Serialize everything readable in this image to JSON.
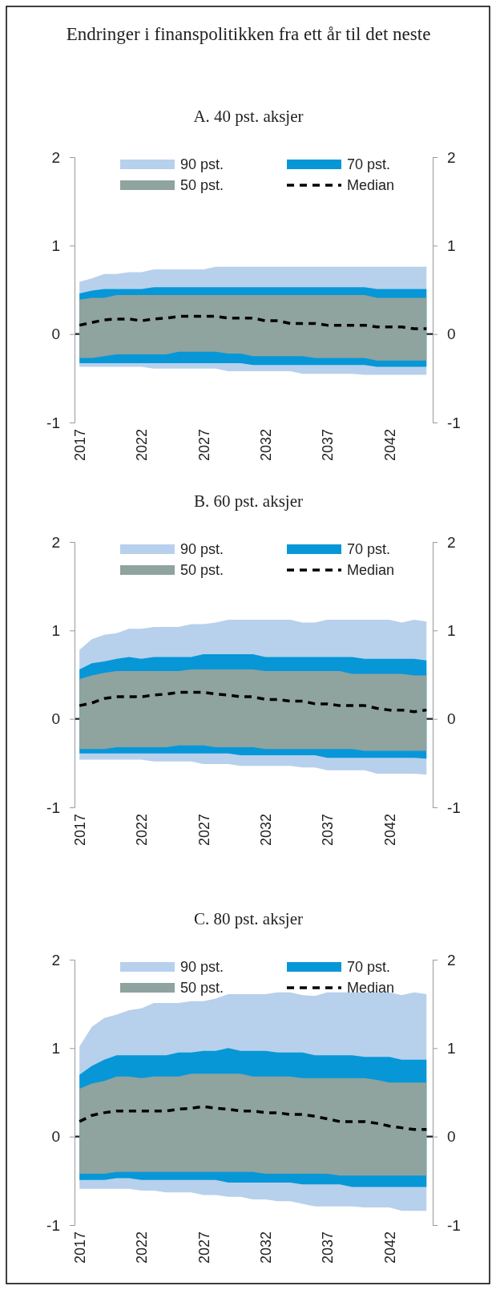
{
  "chart_data": [
    {
      "type": "line",
      "title": "Endringer i finanspolitikken fra ett år til det neste",
      "subtitle": "A. 40 pst. aksjer",
      "x": [
        2017,
        2018,
        2019,
        2020,
        2021,
        2022,
        2023,
        2024,
        2025,
        2026,
        2027,
        2028,
        2029,
        2030,
        2031,
        2032,
        2033,
        2034,
        2035,
        2036,
        2037,
        2038,
        2039,
        2040,
        2041,
        2042,
        2043,
        2044,
        2045
      ],
      "xlim": [
        2016.6,
        2045.5
      ],
      "xticks": [
        2017,
        2022,
        2027,
        2032,
        2037,
        2042
      ],
      "ylim": [
        -1,
        2
      ],
      "yticks": [
        -1,
        0,
        1,
        2
      ],
      "y2lim": [
        -1,
        2
      ],
      "y2ticks": [
        -1,
        0,
        1,
        2
      ],
      "legend": "top",
      "series": [
        {
          "name": "90 pst.",
          "color": "#b7d0ec",
          "values": [
            null,
            null,
            null,
            null,
            null,
            null,
            null,
            null,
            null,
            null,
            null,
            null,
            null,
            null,
            null,
            null,
            null,
            null,
            null,
            null,
            null,
            null,
            null,
            null,
            null,
            null,
            null,
            null,
            null
          ],
          "lower": [
            -0.37,
            -0.37,
            -0.37,
            -0.37,
            -0.37,
            -0.37,
            -0.39,
            -0.39,
            -0.39,
            -0.39,
            -0.39,
            -0.39,
            -0.42,
            -0.42,
            -0.42,
            -0.42,
            -0.42,
            -0.42,
            -0.45,
            -0.45,
            -0.45,
            -0.45,
            -0.45,
            -0.46,
            -0.46,
            -0.46,
            -0.46,
            -0.46,
            -0.46
          ],
          "upper": [
            0.59,
            0.63,
            0.68,
            0.68,
            0.7,
            0.7,
            0.73,
            0.73,
            0.73,
            0.73,
            0.73,
            0.76,
            0.76,
            0.76,
            0.76,
            0.76,
            0.76,
            0.76,
            0.76,
            0.76,
            0.76,
            0.76,
            0.76,
            0.76,
            0.76,
            0.76,
            0.76,
            0.76,
            0.76
          ]
        },
        {
          "name": "70 pst.",
          "color": "#0797d7",
          "values": [
            null,
            null,
            null,
            null,
            null,
            null,
            null,
            null,
            null,
            null,
            null,
            null,
            null,
            null,
            null,
            null,
            null,
            null,
            null,
            null,
            null,
            null,
            null,
            null,
            null,
            null,
            null,
            null,
            null
          ],
          "lower": [
            -0.33,
            -0.33,
            -0.33,
            -0.33,
            -0.33,
            -0.33,
            -0.33,
            -0.33,
            -0.33,
            -0.33,
            -0.33,
            -0.33,
            -0.33,
            -0.33,
            -0.35,
            -0.35,
            -0.35,
            -0.35,
            -0.35,
            -0.35,
            -0.35,
            -0.35,
            -0.35,
            -0.35,
            -0.37,
            -0.37,
            -0.37,
            -0.37,
            -0.37
          ],
          "upper": [
            0.46,
            0.49,
            0.51,
            0.51,
            0.51,
            0.51,
            0.53,
            0.53,
            0.53,
            0.53,
            0.53,
            0.53,
            0.53,
            0.53,
            0.53,
            0.53,
            0.53,
            0.53,
            0.53,
            0.53,
            0.53,
            0.53,
            0.53,
            0.53,
            0.51,
            0.51,
            0.51,
            0.51,
            0.51
          ]
        },
        {
          "name": "50 pst.",
          "color": "#8fa39f",
          "values": [
            null,
            null,
            null,
            null,
            null,
            null,
            null,
            null,
            null,
            null,
            null,
            null,
            null,
            null,
            null,
            null,
            null,
            null,
            null,
            null,
            null,
            null,
            null,
            null,
            null,
            null,
            null,
            null,
            null
          ],
          "lower": [
            -0.27,
            -0.27,
            -0.25,
            -0.23,
            -0.23,
            -0.23,
            -0.23,
            -0.23,
            -0.2,
            -0.2,
            -0.2,
            -0.2,
            -0.22,
            -0.22,
            -0.25,
            -0.25,
            -0.25,
            -0.25,
            -0.25,
            -0.27,
            -0.27,
            -0.27,
            -0.27,
            -0.27,
            -0.3,
            -0.3,
            -0.3,
            -0.3,
            -0.3
          ],
          "upper": [
            0.39,
            0.41,
            0.41,
            0.44,
            0.44,
            0.44,
            0.44,
            0.44,
            0.44,
            0.44,
            0.44,
            0.44,
            0.44,
            0.44,
            0.44,
            0.44,
            0.44,
            0.44,
            0.44,
            0.44,
            0.44,
            0.44,
            0.44,
            0.44,
            0.41,
            0.41,
            0.41,
            0.41,
            0.41
          ]
        },
        {
          "name": "Median",
          "color": "#000000",
          "line_style": "dashed",
          "values": [
            0.1,
            0.13,
            0.16,
            0.17,
            0.17,
            0.15,
            0.17,
            0.18,
            0.2,
            0.2,
            0.2,
            0.2,
            0.18,
            0.18,
            0.18,
            0.15,
            0.15,
            0.12,
            0.12,
            0.12,
            0.1,
            0.1,
            0.1,
            0.1,
            0.08,
            0.08,
            0.08,
            0.06,
            0.06
          ]
        }
      ]
    },
    {
      "type": "line",
      "subtitle": "B. 60 pst. aksjer",
      "x": [
        2017,
        2018,
        2019,
        2020,
        2021,
        2022,
        2023,
        2024,
        2025,
        2026,
        2027,
        2028,
        2029,
        2030,
        2031,
        2032,
        2033,
        2034,
        2035,
        2036,
        2037,
        2038,
        2039,
        2040,
        2041,
        2042,
        2043,
        2044,
        2045
      ],
      "xlim": [
        2016.6,
        2045.5
      ],
      "xticks": [
        2017,
        2022,
        2027,
        2032,
        2037,
        2042
      ],
      "ylim": [
        -1,
        2
      ],
      "yticks": [
        -1,
        0,
        1,
        2
      ],
      "y2lim": [
        -1,
        2
      ],
      "y2ticks": [
        -1,
        0,
        1,
        2
      ],
      "legend": "top",
      "series": [
        {
          "name": "90 pst.",
          "color": "#b7d0ec",
          "values": [
            null,
            null,
            null,
            null,
            null,
            null,
            null,
            null,
            null,
            null,
            null,
            null,
            null,
            null,
            null,
            null,
            null,
            null,
            null,
            null,
            null,
            null,
            null,
            null,
            null,
            null,
            null,
            null,
            null
          ],
          "lower": [
            -0.46,
            -0.46,
            -0.46,
            -0.46,
            -0.46,
            -0.46,
            -0.48,
            -0.48,
            -0.48,
            -0.48,
            -0.51,
            -0.51,
            -0.51,
            -0.53,
            -0.53,
            -0.53,
            -0.53,
            -0.53,
            -0.55,
            -0.55,
            -0.58,
            -0.58,
            -0.58,
            -0.58,
            -0.62,
            -0.62,
            -0.62,
            -0.62,
            -0.63
          ],
          "upper": [
            0.78,
            0.9,
            0.95,
            0.97,
            1.02,
            1.02,
            1.04,
            1.04,
            1.04,
            1.07,
            1.07,
            1.09,
            1.12,
            1.12,
            1.12,
            1.12,
            1.12,
            1.12,
            1.09,
            1.09,
            1.12,
            1.12,
            1.12,
            1.12,
            1.12,
            1.12,
            1.09,
            1.12,
            1.1
          ]
        },
        {
          "name": "70 pst.",
          "color": "#0797d7",
          "values": [
            null,
            null,
            null,
            null,
            null,
            null,
            null,
            null,
            null,
            null,
            null,
            null,
            null,
            null,
            null,
            null,
            null,
            null,
            null,
            null,
            null,
            null,
            null,
            null,
            null,
            null,
            null,
            null,
            null
          ],
          "lower": [
            -0.39,
            -0.39,
            -0.39,
            -0.39,
            -0.39,
            -0.39,
            -0.39,
            -0.39,
            -0.39,
            -0.39,
            -0.39,
            -0.39,
            -0.39,
            -0.41,
            -0.41,
            -0.41,
            -0.41,
            -0.41,
            -0.41,
            -0.41,
            -0.44,
            -0.44,
            -0.44,
            -0.44,
            -0.44,
            -0.44,
            -0.44,
            -0.44,
            -0.45
          ],
          "upper": [
            0.56,
            0.63,
            0.65,
            0.68,
            0.7,
            0.68,
            0.7,
            0.7,
            0.7,
            0.7,
            0.73,
            0.73,
            0.73,
            0.73,
            0.73,
            0.7,
            0.7,
            0.7,
            0.7,
            0.7,
            0.7,
            0.7,
            0.7,
            0.68,
            0.68,
            0.68,
            0.68,
            0.68,
            0.66
          ]
        },
        {
          "name": "50 pst.",
          "color": "#8fa39f",
          "values": [
            null,
            null,
            null,
            null,
            null,
            null,
            null,
            null,
            null,
            null,
            null,
            null,
            null,
            null,
            null,
            null,
            null,
            null,
            null,
            null,
            null,
            null,
            null,
            null,
            null,
            null,
            null,
            null,
            null
          ],
          "lower": [
            -0.34,
            -0.34,
            -0.34,
            -0.32,
            -0.32,
            -0.32,
            -0.32,
            -0.32,
            -0.3,
            -0.3,
            -0.3,
            -0.32,
            -0.32,
            -0.32,
            -0.32,
            -0.34,
            -0.34,
            -0.34,
            -0.34,
            -0.34,
            -0.34,
            -0.34,
            -0.34,
            -0.36,
            -0.36,
            -0.36,
            -0.36,
            -0.36,
            -0.36
          ],
          "upper": [
            0.45,
            0.49,
            0.52,
            0.54,
            0.54,
            0.54,
            0.54,
            0.54,
            0.54,
            0.56,
            0.56,
            0.56,
            0.56,
            0.56,
            0.56,
            0.54,
            0.54,
            0.54,
            0.54,
            0.54,
            0.54,
            0.54,
            0.51,
            0.51,
            0.51,
            0.51,
            0.51,
            0.49,
            0.49
          ]
        },
        {
          "name": "Median",
          "color": "#000000",
          "line_style": "dashed",
          "values": [
            0.15,
            0.18,
            0.23,
            0.25,
            0.25,
            0.25,
            0.27,
            0.28,
            0.3,
            0.3,
            0.3,
            0.28,
            0.27,
            0.25,
            0.25,
            0.22,
            0.22,
            0.2,
            0.2,
            0.17,
            0.17,
            0.15,
            0.15,
            0.15,
            0.12,
            0.1,
            0.1,
            0.08,
            0.1
          ]
        }
      ]
    },
    {
      "type": "line",
      "subtitle": "C. 80 pst. aksjer",
      "x": [
        2017,
        2018,
        2019,
        2020,
        2021,
        2022,
        2023,
        2024,
        2025,
        2026,
        2027,
        2028,
        2029,
        2030,
        2031,
        2032,
        2033,
        2034,
        2035,
        2036,
        2037,
        2038,
        2039,
        2040,
        2041,
        2042,
        2043,
        2044,
        2045
      ],
      "xlim": [
        2016.6,
        2045.5
      ],
      "xticks": [
        2017,
        2022,
        2027,
        2032,
        2037,
        2042
      ],
      "ylim": [
        -1,
        2
      ],
      "yticks": [
        -1,
        0,
        1,
        2
      ],
      "y2lim": [
        -1,
        2
      ],
      "y2ticks": [
        -1,
        0,
        1,
        2
      ],
      "legend": "top",
      "series": [
        {
          "name": "90 pst.",
          "color": "#b7d0ec",
          "values": [
            null,
            null,
            null,
            null,
            null,
            null,
            null,
            null,
            null,
            null,
            null,
            null,
            null,
            null,
            null,
            null,
            null,
            null,
            null,
            null,
            null,
            null,
            null,
            null,
            null,
            null,
            null,
            null,
            null
          ],
          "lower": [
            -0.59,
            -0.59,
            -0.59,
            -0.59,
            -0.59,
            -0.61,
            -0.61,
            -0.63,
            -0.63,
            -0.63,
            -0.66,
            -0.66,
            -0.68,
            -0.68,
            -0.71,
            -0.71,
            -0.73,
            -0.73,
            -0.76,
            -0.79,
            -0.79,
            -0.79,
            -0.79,
            -0.8,
            -0.8,
            -0.8,
            -0.84,
            -0.84,
            -0.84
          ],
          "upper": [
            1.02,
            1.24,
            1.34,
            1.38,
            1.43,
            1.45,
            1.51,
            1.51,
            1.51,
            1.53,
            1.53,
            1.56,
            1.61,
            1.61,
            1.61,
            1.61,
            1.63,
            1.63,
            1.6,
            1.59,
            1.63,
            1.63,
            1.63,
            1.63,
            1.63,
            1.63,
            1.6,
            1.63,
            1.61
          ]
        },
        {
          "name": "70 pst.",
          "color": "#0797d7",
          "values": [
            null,
            null,
            null,
            null,
            null,
            null,
            null,
            null,
            null,
            null,
            null,
            null,
            null,
            null,
            null,
            null,
            null,
            null,
            null,
            null,
            null,
            null,
            null,
            null,
            null,
            null,
            null,
            null,
            null
          ],
          "lower": [
            -0.49,
            -0.49,
            -0.49,
            -0.47,
            -0.47,
            -0.49,
            -0.49,
            -0.49,
            -0.49,
            -0.49,
            -0.49,
            -0.49,
            -0.52,
            -0.52,
            -0.52,
            -0.52,
            -0.52,
            -0.52,
            -0.54,
            -0.54,
            -0.54,
            -0.54,
            -0.57,
            -0.57,
            -0.57,
            -0.57,
            -0.57,
            -0.57,
            -0.57
          ],
          "upper": [
            0.7,
            0.8,
            0.87,
            0.92,
            0.92,
            0.92,
            0.92,
            0.92,
            0.95,
            0.95,
            0.97,
            0.97,
            1.0,
            0.97,
            0.97,
            0.97,
            0.95,
            0.95,
            0.95,
            0.92,
            0.92,
            0.92,
            0.92,
            0.9,
            0.9,
            0.9,
            0.87,
            0.87,
            0.87
          ]
        },
        {
          "name": "50 pst.",
          "color": "#8fa39f",
          "values": [
            null,
            null,
            null,
            null,
            null,
            null,
            null,
            null,
            null,
            null,
            null,
            null,
            null,
            null,
            null,
            null,
            null,
            null,
            null,
            null,
            null,
            null,
            null,
            null,
            null,
            null,
            null,
            null,
            null
          ],
          "lower": [
            -0.42,
            -0.42,
            -0.42,
            -0.4,
            -0.4,
            -0.4,
            -0.4,
            -0.4,
            -0.4,
            -0.4,
            -0.4,
            -0.4,
            -0.4,
            -0.4,
            -0.4,
            -0.42,
            -0.42,
            -0.42,
            -0.42,
            -0.42,
            -0.42,
            -0.44,
            -0.44,
            -0.44,
            -0.44,
            -0.44,
            -0.44,
            -0.44,
            -0.44
          ],
          "upper": [
            0.54,
            0.6,
            0.63,
            0.68,
            0.68,
            0.66,
            0.68,
            0.68,
            0.68,
            0.71,
            0.71,
            0.71,
            0.71,
            0.71,
            0.68,
            0.68,
            0.68,
            0.68,
            0.66,
            0.66,
            0.66,
            0.66,
            0.66,
            0.66,
            0.64,
            0.61,
            0.61,
            0.61,
            0.61
          ]
        },
        {
          "name": "Median",
          "color": "#000000",
          "line_style": "dashed",
          "values": [
            0.17,
            0.24,
            0.27,
            0.29,
            0.29,
            0.29,
            0.29,
            0.29,
            0.31,
            0.32,
            0.34,
            0.32,
            0.31,
            0.29,
            0.29,
            0.27,
            0.27,
            0.25,
            0.25,
            0.23,
            0.2,
            0.17,
            0.17,
            0.17,
            0.15,
            0.12,
            0.1,
            0.08,
            0.08
          ]
        }
      ]
    }
  ]
}
